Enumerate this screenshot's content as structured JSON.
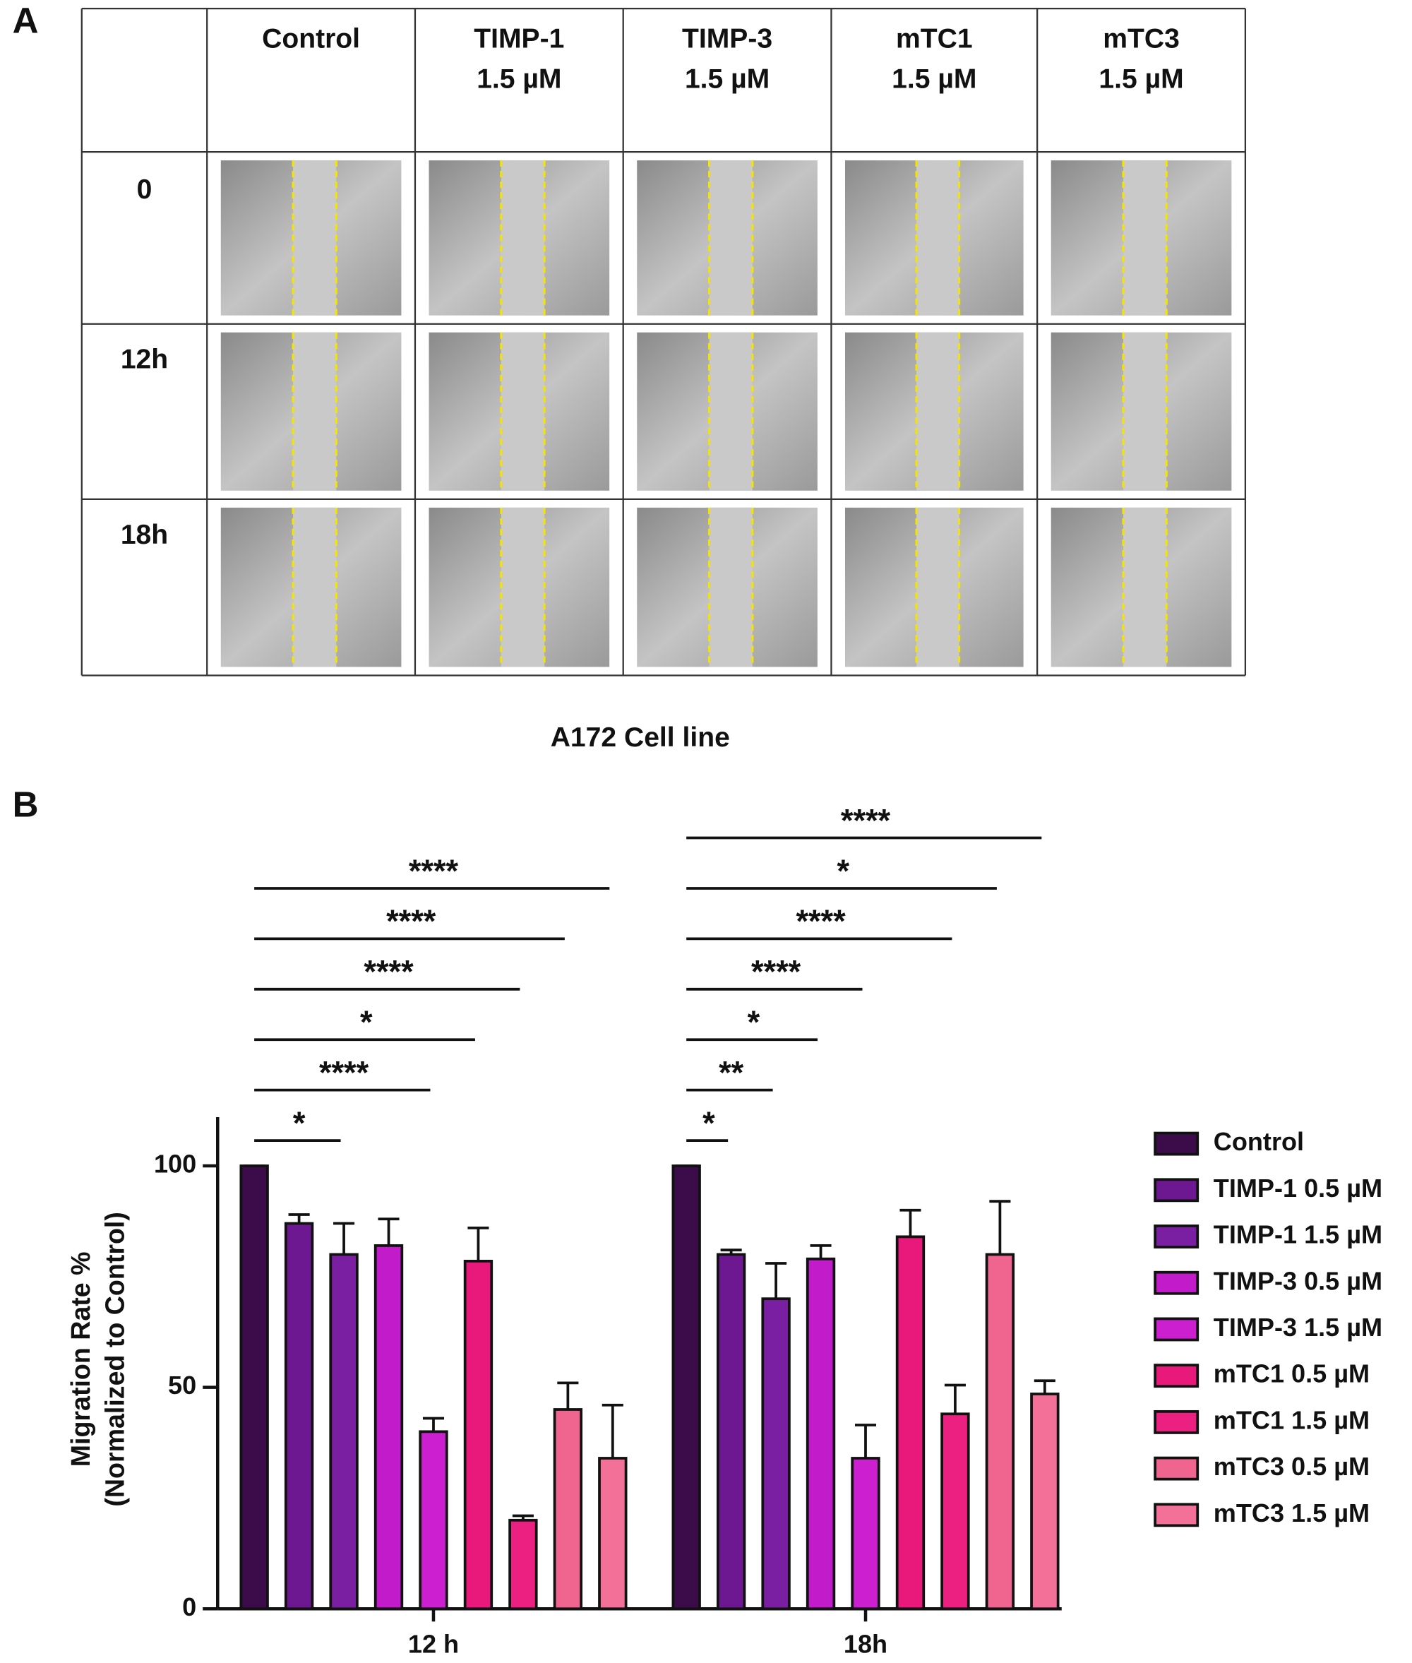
{
  "panel_labels": [
    "A",
    "B"
  ],
  "panel_a": {
    "columns": [
      [
        "Control"
      ],
      [
        "TIMP-1",
        "1.5 µM"
      ],
      [
        "TIMP-3",
        "1.5 µM"
      ],
      [
        "mTC1",
        "1.5 µM"
      ],
      [
        "mTC3",
        "1.5 µM"
      ]
    ],
    "rows": [
      "0",
      "12h",
      "18h"
    ],
    "caption": "A172 Cell line"
  },
  "chart_data": {
    "type": "bar",
    "ylabel": [
      "Migration Rate %",
      "(Normalized to Control)"
    ],
    "categories": [
      "12 h",
      "18h"
    ],
    "ylim": [
      0,
      111
    ],
    "yticks": [
      0,
      50,
      100
    ],
    "series": [
      {
        "name": "Control",
        "color": "#3b0b4a",
        "values": [
          100,
          100
        ],
        "errors": [
          0,
          0
        ],
        "significance": [
          null,
          null
        ]
      },
      {
        "name": "TIMP-1 0.5 µM",
        "color": "#6d1890",
        "values": [
          87,
          80
        ],
        "errors": [
          2,
          1
        ],
        "significance": [
          null,
          "*"
        ]
      },
      {
        "name": "TIMP-1 1.5 µM",
        "color": "#7a1fa2",
        "values": [
          80,
          70
        ],
        "errors": [
          7,
          8
        ],
        "significance": [
          "*",
          "**"
        ]
      },
      {
        "name": "TIMP-3 0.5 µM",
        "color": "#c21bc9",
        "values": [
          82,
          79
        ],
        "errors": [
          6,
          3
        ],
        "significance": [
          null,
          "*"
        ]
      },
      {
        "name": "TIMP-3 1.5 µM",
        "color": "#cc1fd0",
        "values": [
          40,
          34
        ],
        "errors": [
          3,
          7.5
        ],
        "significance": [
          "****",
          "****"
        ]
      },
      {
        "name": "mTC1 0.5 µM",
        "color": "#e8197a",
        "values": [
          78.5,
          84
        ],
        "errors": [
          7.5,
          6
        ],
        "significance": [
          "*",
          null
        ]
      },
      {
        "name": "mTC1 1.5 µM",
        "color": "#ec2080",
        "values": [
          20,
          44
        ],
        "errors": [
          1,
          6.5
        ],
        "significance": [
          "****",
          "****"
        ]
      },
      {
        "name": "mTC3 0.5 µM",
        "color": "#f0658f",
        "values": [
          45,
          80
        ],
        "errors": [
          6,
          12
        ],
        "significance": [
          "****",
          "*"
        ]
      },
      {
        "name": "mTC3 1.5 µM",
        "color": "#f37099",
        "values": [
          34,
          48.5
        ],
        "errors": [
          12,
          3
        ],
        "significance": [
          "****",
          "****"
        ]
      }
    ]
  }
}
